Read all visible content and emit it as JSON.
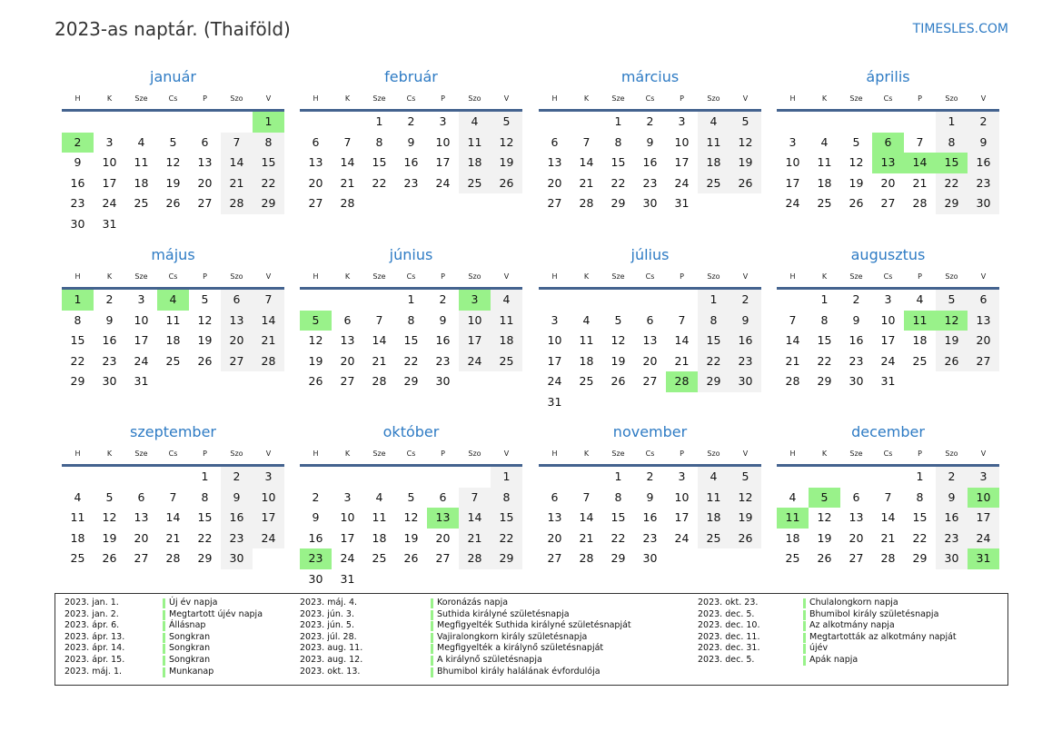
{
  "header": {
    "title": "2023-as naptár. (Thaiföld)",
    "site": "TIMESLES.COM"
  },
  "year": 2023,
  "weekdays": [
    "H",
    "K",
    "Sze",
    "Cs",
    "P",
    "Szo",
    "V"
  ],
  "months": [
    "január",
    "február",
    "március",
    "április",
    "május",
    "június",
    "július",
    "augusztus",
    "szeptember",
    "október",
    "november",
    "december"
  ],
  "colors": {
    "holiday": "#99f28a",
    "weekend": "#f2f2f2",
    "accent": "#2e7bc4"
  },
  "holidays": [
    {
      "date": "2023. jan. 1.",
      "name": "Új év napja",
      "m": 1,
      "d": 1
    },
    {
      "date": "2023. jan. 2.",
      "name": "Megtartott újév napja",
      "m": 1,
      "d": 2
    },
    {
      "date": "2023. ápr. 6.",
      "name": "Állásnap",
      "m": 4,
      "d": 6
    },
    {
      "date": "2023. ápr. 13.",
      "name": "Songkran",
      "m": 4,
      "d": 13
    },
    {
      "date": "2023. ápr. 14.",
      "name": "Songkran",
      "m": 4,
      "d": 14
    },
    {
      "date": "2023. ápr. 15.",
      "name": "Songkran",
      "m": 4,
      "d": 15
    },
    {
      "date": "2023. máj. 1.",
      "name": "Munkanap",
      "m": 5,
      "d": 1
    },
    {
      "date": "2023. máj. 4.",
      "name": "Koronázás napja",
      "m": 5,
      "d": 4
    },
    {
      "date": "2023. jún. 3.",
      "name": "Suthida királyné születésnapja",
      "m": 6,
      "d": 3
    },
    {
      "date": "2023. jún. 5.",
      "name": "Megfigyelték Suthida királyné születésnapját",
      "m": 6,
      "d": 5
    },
    {
      "date": "2023. júl. 28.",
      "name": "Vajiralongkorn király születésnapja",
      "m": 7,
      "d": 28
    },
    {
      "date": "2023. aug. 11.",
      "name": "Megfigyelték a királynő születésnapját",
      "m": 8,
      "d": 11
    },
    {
      "date": "2023. aug. 12.",
      "name": "A királynő születésnapja",
      "m": 8,
      "d": 12
    },
    {
      "date": "2023. okt. 13.",
      "name": "Bhumibol király halálának évfordulója",
      "m": 10,
      "d": 13
    },
    {
      "date": "2023. okt. 23.",
      "name": "Chulalongkorn napja",
      "m": 10,
      "d": 23
    },
    {
      "date": "2023. dec. 5.",
      "name": "Bhumibol király születésnapja",
      "m": 12,
      "d": 5
    },
    {
      "date": "2023. dec. 10.",
      "name": "Az alkotmány napja",
      "m": 12,
      "d": 10
    },
    {
      "date": "2023. dec. 11.",
      "name": "Megtartották az alkotmány napját",
      "m": 12,
      "d": 11
    },
    {
      "date": "2023. dec. 31.",
      "name": "újév",
      "m": 12,
      "d": 31
    },
    {
      "date": "2023. dec. 5.",
      "name": "Apák napja",
      "m": 12,
      "d": 5
    }
  ]
}
